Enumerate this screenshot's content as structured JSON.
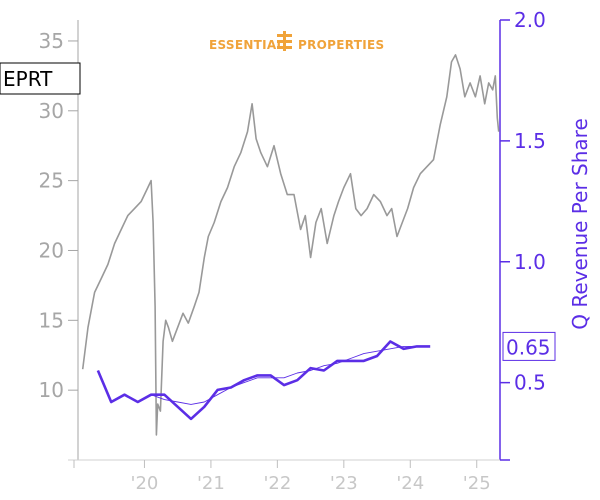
{
  "logo": {
    "left_text": "ESSENTIAL",
    "right_text": "PROPERTIES",
    "color": "#f0a33a"
  },
  "ticker": "EPRT",
  "colors": {
    "price": "#999999",
    "revenue": "#5b2ee6",
    "revenue_trend": "#5b2ee6",
    "left_axis": "#a6a6a6",
    "right_axis": "#5b2ee6"
  },
  "chart_data": {
    "type": "line",
    "x_tick_labels": [
      "'20",
      "'21",
      "'22",
      "'23",
      "'24",
      "'25"
    ],
    "x_ticks": [
      2020,
      2021,
      2022,
      2023,
      2024,
      2025
    ],
    "xlim": [
      2019.0,
      2025.35
    ],
    "left_axis": {
      "ylim": [
        5,
        36.5
      ],
      "ticks": [
        10,
        15,
        20,
        25,
        30,
        35
      ]
    },
    "right_axis": {
      "label": "Q Revenue Per Share",
      "ylim": [
        0.18,
        2.0
      ],
      "ticks": [
        0.5,
        1.0,
        1.5,
        2.0
      ],
      "tick_labels": [
        "0.5",
        "1.0",
        "1.5",
        "2.0"
      ]
    },
    "last_value_label": "0.65",
    "series": [
      {
        "axis": "left",
        "style": "price",
        "points": [
          [
            2019.07,
            11.5
          ],
          [
            2019.15,
            14.5
          ],
          [
            2019.25,
            17.0
          ],
          [
            2019.35,
            18.0
          ],
          [
            2019.45,
            19.0
          ],
          [
            2019.55,
            20.5
          ],
          [
            2019.65,
            21.5
          ],
          [
            2019.75,
            22.5
          ],
          [
            2019.85,
            23.0
          ],
          [
            2019.95,
            23.5
          ],
          [
            2020.05,
            24.5
          ],
          [
            2020.1,
            25.0
          ],
          [
            2020.13,
            22.0
          ],
          [
            2020.16,
            16.0
          ],
          [
            2020.18,
            6.8
          ],
          [
            2020.2,
            9.0
          ],
          [
            2020.24,
            8.5
          ],
          [
            2020.28,
            13.5
          ],
          [
            2020.32,
            15.0
          ],
          [
            2020.36,
            14.5
          ],
          [
            2020.42,
            13.5
          ],
          [
            2020.5,
            14.5
          ],
          [
            2020.58,
            15.5
          ],
          [
            2020.66,
            14.8
          ],
          [
            2020.75,
            16.0
          ],
          [
            2020.82,
            17.0
          ],
          [
            2020.9,
            19.5
          ],
          [
            2020.96,
            21.0
          ],
          [
            2021.05,
            22.0
          ],
          [
            2021.15,
            23.5
          ],
          [
            2021.25,
            24.5
          ],
          [
            2021.35,
            26.0
          ],
          [
            2021.45,
            27.0
          ],
          [
            2021.55,
            28.5
          ],
          [
            2021.62,
            30.5
          ],
          [
            2021.68,
            28.0
          ],
          [
            2021.75,
            27.0
          ],
          [
            2021.85,
            26.0
          ],
          [
            2021.95,
            27.5
          ],
          [
            2022.05,
            25.5
          ],
          [
            2022.15,
            24.0
          ],
          [
            2022.25,
            24.0
          ],
          [
            2022.35,
            21.5
          ],
          [
            2022.42,
            22.5
          ],
          [
            2022.5,
            19.5
          ],
          [
            2022.58,
            22.0
          ],
          [
            2022.66,
            23.0
          ],
          [
            2022.75,
            20.5
          ],
          [
            2022.85,
            22.5
          ],
          [
            2022.92,
            23.5
          ],
          [
            2023.0,
            24.5
          ],
          [
            2023.1,
            25.5
          ],
          [
            2023.18,
            23.0
          ],
          [
            2023.26,
            22.5
          ],
          [
            2023.35,
            23.0
          ],
          [
            2023.45,
            24.0
          ],
          [
            2023.55,
            23.5
          ],
          [
            2023.65,
            22.5
          ],
          [
            2023.72,
            23.0
          ],
          [
            2023.8,
            21.0
          ],
          [
            2023.88,
            22.0
          ],
          [
            2023.96,
            23.0
          ],
          [
            2024.05,
            24.5
          ],
          [
            2024.15,
            25.5
          ],
          [
            2024.25,
            26.0
          ],
          [
            2024.35,
            26.5
          ],
          [
            2024.45,
            29.0
          ],
          [
            2024.55,
            31.0
          ],
          [
            2024.62,
            33.5
          ],
          [
            2024.68,
            34.0
          ],
          [
            2024.75,
            33.0
          ],
          [
            2024.82,
            31.0
          ],
          [
            2024.9,
            32.0
          ],
          [
            2024.98,
            31.0
          ],
          [
            2025.05,
            32.5
          ],
          [
            2025.12,
            30.5
          ],
          [
            2025.18,
            32.0
          ],
          [
            2025.24,
            31.5
          ],
          [
            2025.28,
            32.5
          ],
          [
            2025.31,
            29.5
          ],
          [
            2025.33,
            28.5
          ]
        ]
      },
      {
        "axis": "right",
        "style": "revenue",
        "points": [
          [
            2019.3,
            0.55
          ],
          [
            2019.5,
            0.42
          ],
          [
            2019.7,
            0.45
          ],
          [
            2019.9,
            0.42
          ],
          [
            2020.1,
            0.45
          ],
          [
            2020.3,
            0.45
          ],
          [
            2020.5,
            0.4
          ],
          [
            2020.7,
            0.35
          ],
          [
            2020.9,
            0.4
          ],
          [
            2021.1,
            0.47
          ],
          [
            2021.3,
            0.48
          ],
          [
            2021.5,
            0.51
          ],
          [
            2021.7,
            0.53
          ],
          [
            2021.9,
            0.53
          ],
          [
            2022.1,
            0.49
          ],
          [
            2022.3,
            0.51
          ],
          [
            2022.5,
            0.56
          ],
          [
            2022.7,
            0.55
          ],
          [
            2022.9,
            0.59
          ],
          [
            2023.1,
            0.59
          ],
          [
            2023.3,
            0.59
          ],
          [
            2023.5,
            0.61
          ],
          [
            2023.7,
            0.67
          ],
          [
            2023.9,
            0.64
          ],
          [
            2024.1,
            0.65
          ],
          [
            2024.3,
            0.65
          ]
        ]
      },
      {
        "axis": "right",
        "style": "revenue_trend",
        "points": [
          [
            2020.1,
            0.45
          ],
          [
            2020.3,
            0.43
          ],
          [
            2020.5,
            0.42
          ],
          [
            2020.7,
            0.41
          ],
          [
            2020.9,
            0.42
          ],
          [
            2021.1,
            0.45
          ],
          [
            2021.3,
            0.48
          ],
          [
            2021.5,
            0.5
          ],
          [
            2021.7,
            0.52
          ],
          [
            2021.9,
            0.52
          ],
          [
            2022.1,
            0.52
          ],
          [
            2022.3,
            0.54
          ],
          [
            2022.5,
            0.55
          ],
          [
            2022.7,
            0.57
          ],
          [
            2022.9,
            0.58
          ],
          [
            2023.1,
            0.6
          ],
          [
            2023.3,
            0.62
          ],
          [
            2023.5,
            0.63
          ],
          [
            2023.7,
            0.64
          ],
          [
            2023.9,
            0.65
          ],
          [
            2024.1,
            0.65
          ]
        ]
      }
    ]
  }
}
